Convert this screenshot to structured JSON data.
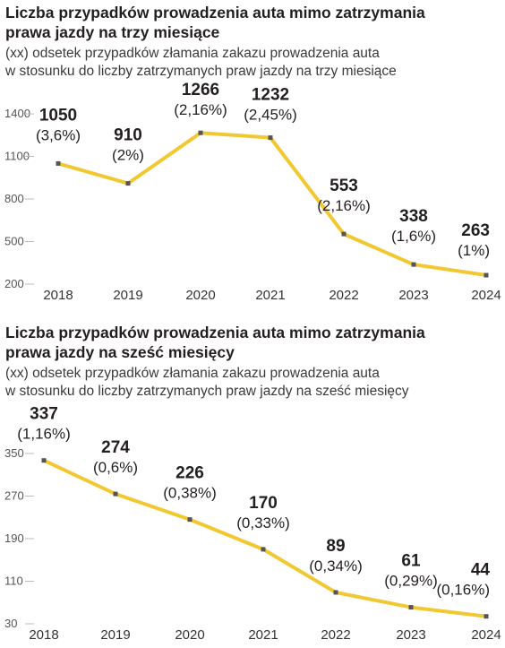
{
  "chart_data": [
    {
      "type": "line",
      "title": "Liczba przypadków prowadzenia auta mimo zatrzymania\nprawa jazdy na trzy miesiące",
      "subtitle": "(xx) odsetek przypadków złamania zakazu prowadzenia auta\nw stosunku do liczby zatrzymanych praw jazdy na trzy miesiące",
      "categories": [
        "2018",
        "2019",
        "2020",
        "2021",
        "2022",
        "2023",
        "2024"
      ],
      "values": [
        1050,
        910,
        1266,
        1232,
        553,
        338,
        263
      ],
      "value_labels": [
        "1050",
        "910",
        "1266",
        "1232",
        "553",
        "338",
        "263"
      ],
      "percent_labels": [
        "(3,6%)",
        "(2%)",
        "(2,16%)",
        "(2,45%)",
        "(2,16%)",
        "(1,6%)",
        "(1%)"
      ],
      "yticks": [
        200,
        500,
        800,
        1100,
        1400
      ],
      "ylim": [
        200,
        1450
      ],
      "grid": false,
      "line_color": "#f2c832",
      "marker_color": "#555555"
    },
    {
      "type": "line",
      "title": "Liczba przypadków prowadzenia auta mimo zatrzymania\nprawa jazdy na sześć miesięcy",
      "subtitle": "(xx) odsetek przypadków złamania zakazu prowadzenia auta\nw stosunku do liczby zatrzymanych praw jazdy na sześć miesięcy",
      "categories": [
        "2018",
        "2019",
        "2020",
        "2021",
        "2022",
        "2023",
        "2024"
      ],
      "values": [
        337,
        274,
        226,
        170,
        89,
        61,
        44
      ],
      "value_labels": [
        "337",
        "274",
        "226",
        "170",
        "89",
        "61",
        "44"
      ],
      "percent_labels": [
        "(1,16%)",
        "(0,6%)",
        "(0,38%)",
        "(0,33%)",
        "(0,34%)",
        "(0,29%)",
        "(0,16%)"
      ],
      "yticks": [
        30,
        110,
        190,
        270,
        350
      ],
      "ylim": [
        30,
        355
      ],
      "grid": false,
      "line_color": "#f2c832",
      "marker_color": "#555555"
    }
  ]
}
